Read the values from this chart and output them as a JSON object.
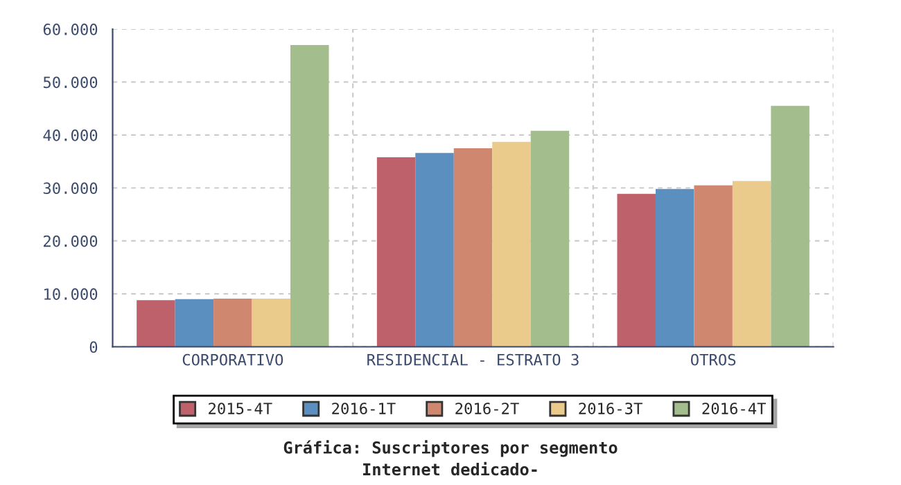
{
  "chart_data": {
    "type": "bar",
    "title": "Gráfica: Suscriptores por segmento",
    "subtitle": "Internet dedicado-",
    "categories": [
      "CORPORATIVO",
      "RESIDENCIAL - ESTRATO 3",
      "OTROS"
    ],
    "series": [
      {
        "name": "2015-4T",
        "color": "#bf616a",
        "values": [
          8800,
          35800,
          28900
        ]
      },
      {
        "name": "2016-1T",
        "color": "#5b8fbf",
        "values": [
          9000,
          36600,
          29800
        ]
      },
      {
        "name": "2016-2T",
        "color": "#d08770",
        "values": [
          9100,
          37500,
          30500
        ]
      },
      {
        "name": "2016-3T",
        "color": "#ebcb8b",
        "values": [
          9100,
          38700,
          31300
        ]
      },
      {
        "name": "2016-4T",
        "color": "#a3be8c",
        "values": [
          57000,
          40800,
          45500
        ]
      }
    ],
    "ylim": [
      0,
      60000
    ],
    "yticks": [
      {
        "value": 0,
        "label": "0"
      },
      {
        "value": 10000,
        "label": "10.000"
      },
      {
        "value": 20000,
        "label": "20.000"
      },
      {
        "value": 30000,
        "label": "30.000"
      },
      {
        "value": 40000,
        "label": "40.000"
      },
      {
        "value": 50000,
        "label": "50.000"
      },
      {
        "value": 60000,
        "label": "60.000"
      }
    ],
    "grid": true,
    "legend": "bottom"
  }
}
